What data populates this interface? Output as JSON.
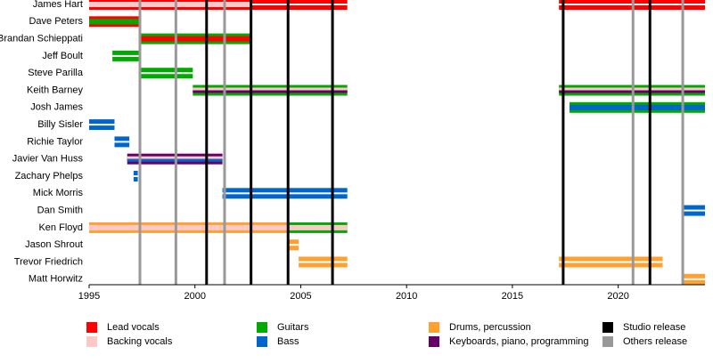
{
  "chart_data": {
    "type": "timeline",
    "xlim": [
      1995,
      2024.1
    ],
    "xticks": [
      1995,
      2000,
      2005,
      2010,
      2015,
      2020
    ],
    "roles": [
      {
        "name": "Lead vocals",
        "color": "#ff0000"
      },
      {
        "name": "Backing vocals",
        "color": "#ffc8c8"
      },
      {
        "name": "Guitars",
        "color": "#00aa00"
      },
      {
        "name": "Bass",
        "color": "#0066cc"
      },
      {
        "name": "Drums, percussion",
        "color": "#ffa030"
      },
      {
        "name": "Keyboards, piano, programming",
        "color": "#660066"
      }
    ],
    "releases": [
      {
        "name": "Studio release",
        "color": "#000000",
        "years": [
          2000.55,
          2002.65,
          2004.4,
          2006.5,
          2017.4,
          2021.5
        ]
      },
      {
        "name": "Others release",
        "color": "#999999",
        "years": [
          1997.4,
          1999.1,
          2001.4,
          2020.7,
          2023.05
        ]
      }
    ],
    "members": [
      {
        "name": "James Hart",
        "periods": [
          {
            "start": 1995,
            "end": 2002.65,
            "roles": [
              0,
              1
            ]
          },
          {
            "start": 2002.65,
            "end": 2007.2,
            "roles": [
              0
            ]
          },
          {
            "start": 2017.2,
            "end": 2024.1,
            "roles": [
              0
            ]
          }
        ]
      },
      {
        "name": "Dave Peters",
        "periods": [
          {
            "start": 1995,
            "end": 1997.4,
            "roles": [
              0,
              2
            ]
          }
        ]
      },
      {
        "name": "Brandan Schieppati",
        "periods": [
          {
            "start": 1997.4,
            "end": 2002.65,
            "roles": [
              2,
              0
            ]
          }
        ]
      },
      {
        "name": "Jeff Boult",
        "periods": [
          {
            "start": 1996.1,
            "end": 1997.4,
            "roles": [
              2
            ]
          }
        ]
      },
      {
        "name": "Steve Parilla",
        "periods": [
          {
            "start": 1997.4,
            "end": 1999.9,
            "roles": [
              2
            ]
          }
        ]
      },
      {
        "name": "Keith Barney",
        "periods": [
          {
            "start": 1999.9,
            "end": 2007.2,
            "roles": [
              2,
              1,
              5
            ]
          },
          {
            "start": 2017.2,
            "end": 2024.1,
            "roles": [
              2,
              1,
              5
            ]
          }
        ]
      },
      {
        "name": "Josh James",
        "periods": [
          {
            "start": 2017.7,
            "end": 2024.1,
            "roles": [
              2,
              3
            ]
          }
        ]
      },
      {
        "name": "Billy Sisler",
        "periods": [
          {
            "start": 1995,
            "end": 1996.2,
            "roles": [
              3
            ]
          }
        ]
      },
      {
        "name": "Richie Taylor",
        "periods": [
          {
            "start": 1996.2,
            "end": 1996.9,
            "roles": [
              3
            ]
          }
        ]
      },
      {
        "name": "Javier Van Huss",
        "periods": [
          {
            "start": 1996.8,
            "end": 2001.3,
            "roles": [
              5,
              1,
              3
            ]
          }
        ]
      },
      {
        "name": "Zachary Phelps",
        "periods": [
          {
            "start": 1997.1,
            "end": 1997.3,
            "roles": [
              3
            ]
          }
        ]
      },
      {
        "name": "Mick Morris",
        "periods": [
          {
            "start": 2001.3,
            "end": 2007.2,
            "roles": [
              3
            ]
          }
        ]
      },
      {
        "name": "Dan Smith",
        "periods": [
          {
            "start": 2023.05,
            "end": 2024.1,
            "roles": [
              3
            ]
          }
        ]
      },
      {
        "name": "Ken Floyd",
        "periods": [
          {
            "start": 1995,
            "end": 2004.4,
            "roles": [
              4,
              1
            ]
          },
          {
            "start": 2004.4,
            "end": 2007.2,
            "roles": [
              2,
              1
            ]
          }
        ]
      },
      {
        "name": "Jason Shrout",
        "periods": [
          {
            "start": 2004.4,
            "end": 2004.9,
            "roles": [
              4
            ]
          }
        ]
      },
      {
        "name": "Trevor Friedrich",
        "periods": [
          {
            "start": 2004.9,
            "end": 2007.2,
            "roles": [
              4
            ]
          },
          {
            "start": 2017.2,
            "end": 2022.1,
            "roles": [
              4
            ]
          }
        ]
      },
      {
        "name": "Matt Horwitz",
        "periods": [
          {
            "start": 2023.05,
            "end": 2024.1,
            "roles": [
              4
            ]
          }
        ]
      }
    ]
  }
}
